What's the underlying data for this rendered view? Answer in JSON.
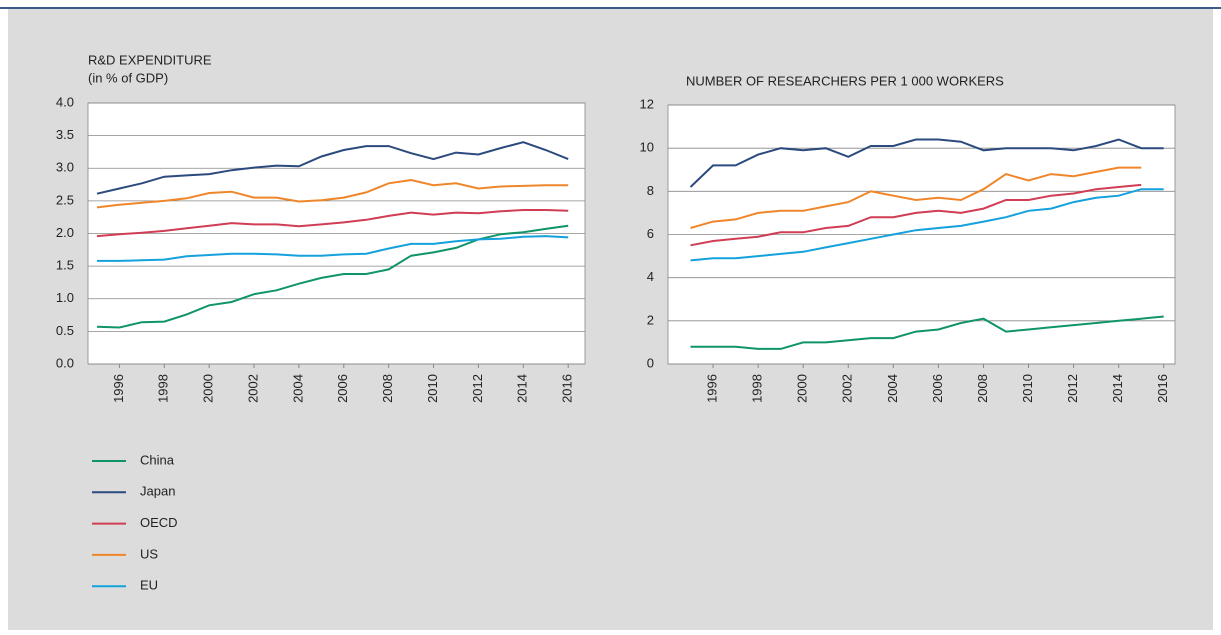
{
  "chart_data": [
    {
      "type": "line",
      "title": "R&D EXPENDITURE",
      "subtitle": "(in % of GDP)",
      "x": [
        1995,
        1996,
        1997,
        1998,
        1999,
        2000,
        2001,
        2002,
        2003,
        2004,
        2005,
        2006,
        2007,
        2008,
        2009,
        2010,
        2011,
        2012,
        2013,
        2014,
        2015,
        2016
      ],
      "xlim": [
        1994.6,
        2016.75
      ],
      "xticks": [
        1996,
        1998,
        2000,
        2002,
        2004,
        2006,
        2008,
        2010,
        2012,
        2014,
        2016
      ],
      "ylim": [
        0,
        4
      ],
      "yticks": [
        {
          "value": 0,
          "label": "0.0"
        },
        0.5,
        {
          "value": 1,
          "label": "1.0"
        },
        1.5,
        {
          "value": 2,
          "label": "2.0"
        },
        2.5,
        {
          "value": 3,
          "label": "3.0"
        },
        3.5,
        {
          "value": 4,
          "label": "4.0"
        }
      ],
      "grid": true,
      "series": [
        {
          "name": "China",
          "color": "#10946a",
          "values": [
            0.57,
            0.56,
            0.64,
            0.65,
            0.76,
            0.9,
            0.95,
            1.07,
            1.13,
            1.23,
            1.32,
            1.38,
            1.38,
            1.45,
            1.66,
            1.71,
            1.78,
            1.91,
            1.99,
            2.02,
            2.07,
            2.12
          ]
        },
        {
          "name": "Japan",
          "color": "#2b4a7e",
          "values": [
            2.61,
            2.69,
            2.77,
            2.87,
            2.89,
            2.91,
            2.97,
            3.01,
            3.04,
            3.03,
            3.18,
            3.28,
            3.34,
            3.34,
            3.23,
            3.14,
            3.24,
            3.21,
            3.31,
            3.4,
            3.28,
            3.14
          ]
        },
        {
          "name": "OECD",
          "color": "#d03d55",
          "values": [
            1.96,
            1.99,
            2.01,
            2.04,
            2.08,
            2.12,
            2.16,
            2.14,
            2.14,
            2.11,
            2.14,
            2.17,
            2.21,
            2.27,
            2.32,
            2.29,
            2.32,
            2.31,
            2.34,
            2.36,
            2.36,
            2.35
          ]
        },
        {
          "name": "US",
          "color": "#f0862a",
          "values": [
            2.4,
            2.44,
            2.47,
            2.5,
            2.54,
            2.62,
            2.64,
            2.55,
            2.55,
            2.49,
            2.51,
            2.55,
            2.63,
            2.77,
            2.82,
            2.74,
            2.77,
            2.69,
            2.72,
            2.73,
            2.74,
            2.74
          ]
        },
        {
          "name": "EU",
          "color": "#15a1dc",
          "values": [
            1.58,
            1.58,
            1.59,
            1.6,
            1.65,
            1.67,
            1.69,
            1.69,
            1.68,
            1.66,
            1.66,
            1.68,
            1.69,
            1.77,
            1.84,
            1.84,
            1.88,
            1.91,
            1.92,
            1.95,
            1.96,
            1.94
          ]
        }
      ]
    },
    {
      "type": "line",
      "title": "NUMBER OF RESEARCHERS PER 1 000 WORKERS",
      "x": [
        1995,
        1996,
        1997,
        1998,
        1999,
        2000,
        2001,
        2002,
        2003,
        2004,
        2005,
        2006,
        2007,
        2008,
        2009,
        2010,
        2011,
        2012,
        2013,
        2014,
        2015,
        2016
      ],
      "xlim": [
        1994,
        2016.5
      ],
      "xticks": [
        1996,
        1998,
        2000,
        2002,
        2004,
        2006,
        2008,
        2010,
        2012,
        2014,
        2016
      ],
      "ylim": [
        0,
        12
      ],
      "yticks": [
        0,
        2,
        4,
        6,
        8,
        10,
        12
      ],
      "grid": true,
      "series": [
        {
          "color": "#10946a",
          "values": [
            0.8,
            0.8,
            0.8,
            0.7,
            0.7,
            1.0,
            1.0,
            1.1,
            1.2,
            1.2,
            1.5,
            1.6,
            1.9,
            2.1,
            1.5,
            1.6,
            1.7,
            1.8,
            1.9,
            2.0,
            2.1,
            2.2
          ]
        },
        {
          "color": "#2b4a7e",
          "values": [
            8.2,
            9.2,
            9.2,
            9.7,
            10.0,
            9.9,
            10.0,
            9.6,
            10.1,
            10.1,
            10.4,
            10.4,
            10.3,
            9.9,
            10.0,
            10.0,
            10.0,
            9.9,
            10.1,
            10.4,
            10.0,
            10.0
          ]
        },
        {
          "color": "#d03d55",
          "values": [
            5.5,
            5.7,
            5.8,
            5.9,
            6.1,
            6.1,
            6.3,
            6.4,
            6.8,
            6.8,
            7.0,
            7.1,
            7.0,
            7.2,
            7.6,
            7.6,
            7.8,
            7.9,
            8.1,
            8.2,
            8.3,
            null
          ]
        },
        {
          "color": "#f0862a",
          "values": [
            6.3,
            6.6,
            6.7,
            7.0,
            7.1,
            7.1,
            7.3,
            7.5,
            8.0,
            7.8,
            7.6,
            7.7,
            7.6,
            8.1,
            8.8,
            8.5,
            8.8,
            8.7,
            8.9,
            9.1,
            9.1,
            null
          ]
        },
        {
          "color": "#15a1dc",
          "values": [
            4.8,
            4.9,
            4.9,
            5.0,
            5.1,
            5.2,
            5.4,
            5.6,
            5.8,
            6.0,
            6.2,
            6.3,
            6.4,
            6.6,
            6.8,
            7.1,
            7.2,
            7.5,
            7.7,
            7.8,
            8.1,
            8.1
          ]
        }
      ]
    }
  ]
}
